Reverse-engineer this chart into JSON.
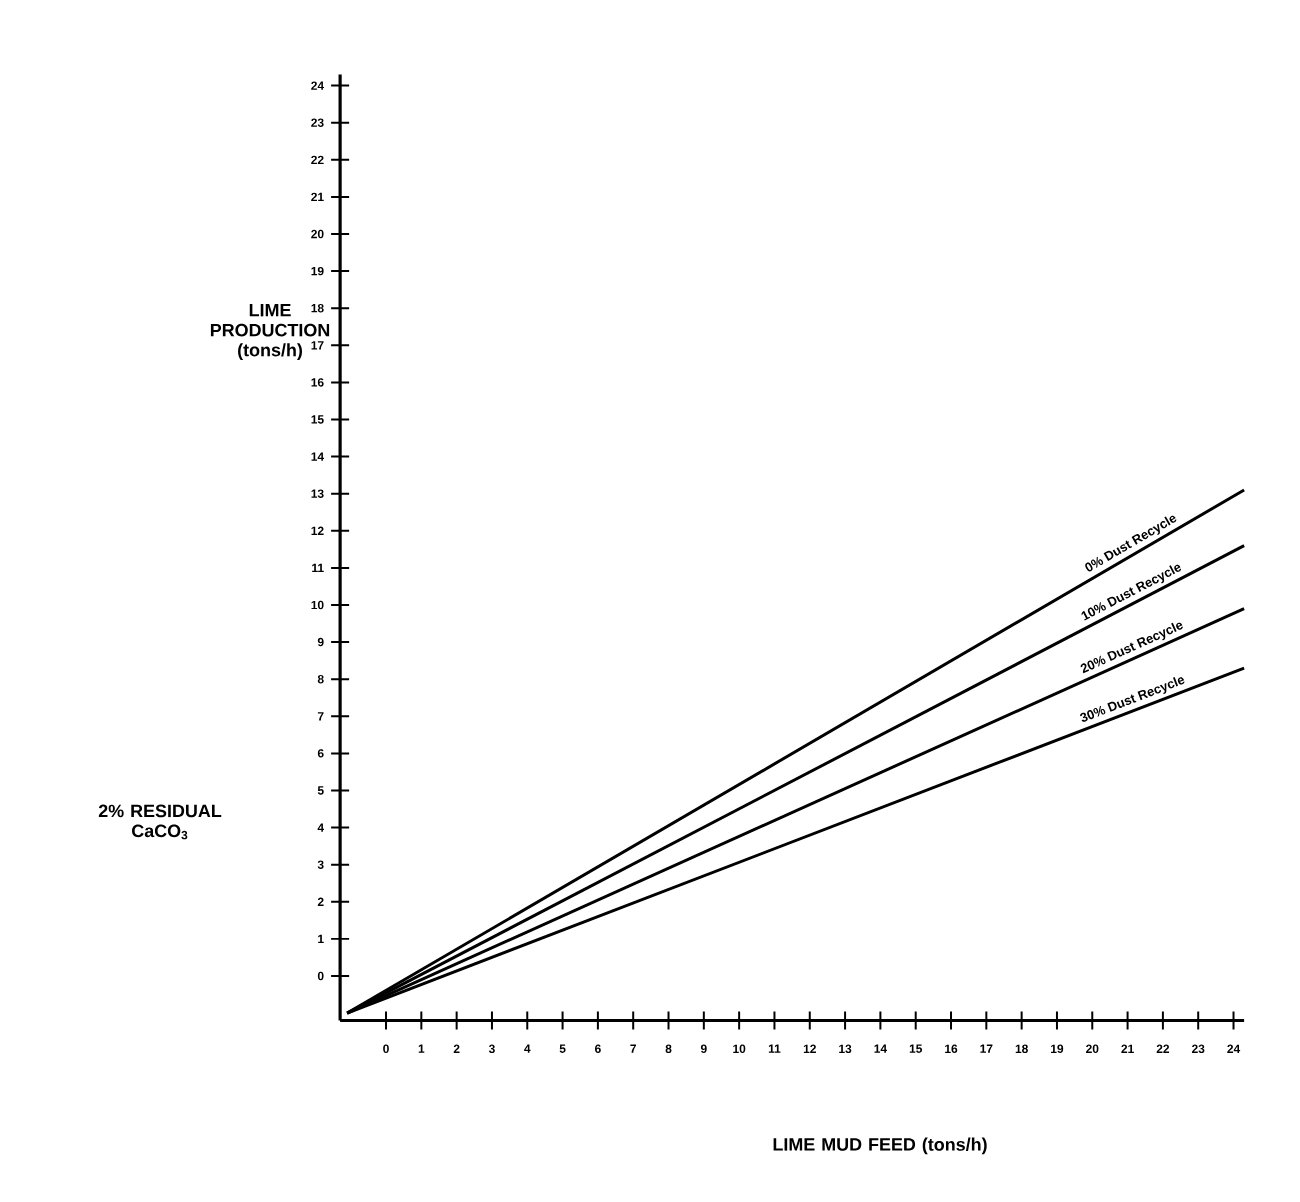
{
  "chart_data": {
    "type": "line",
    "xlabel": "LIME MUD FEED (tons/h)",
    "ylabel": "LIME PRODUCTION (tons/h)",
    "annotations": [
      "2% RESIDUAL CaCO$_{3}$"
    ],
    "xlim": [
      -1.3,
      24.3
    ],
    "ylim": [
      -1.2,
      24.3
    ],
    "xticks": [
      0,
      1,
      2,
      3,
      4,
      5,
      6,
      7,
      8,
      9,
      10,
      11,
      12,
      13,
      14,
      15,
      16,
      17,
      18,
      19,
      20,
      21,
      22,
      23,
      24
    ],
    "yticks": [
      0,
      1,
      2,
      3,
      4,
      5,
      6,
      7,
      8,
      9,
      10,
      11,
      12,
      13,
      14,
      15,
      16,
      17,
      18,
      19,
      20,
      21,
      22,
      23,
      24
    ],
    "x": [
      -1.1,
      24.3
    ],
    "grid": false,
    "legend": false,
    "marker": "none",
    "line_style": "solid",
    "series": [
      {
        "name": "0% Dust Recycle",
        "color": "#000000",
        "values": [
          -1,
          13.1
        ]
      },
      {
        "name": "10% Dust Recycle",
        "color": "#000000",
        "values": [
          -1,
          11.6
        ]
      },
      {
        "name": "20% Dust Recycle",
        "color": "#000000",
        "values": [
          -1,
          9.9
        ]
      },
      {
        "name": "30% Dust Recycle",
        "color": "#000000",
        "values": [
          -1,
          8.3
        ]
      }
    ]
  }
}
